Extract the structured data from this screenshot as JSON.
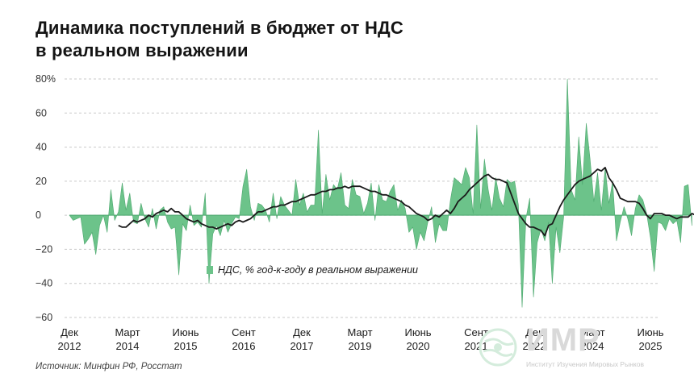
{
  "title": {
    "line1": "Динамика поступлений в бюджет от НДС",
    "line2": "в реальном выражении"
  },
  "source": "Источник: Минфин РФ, Росстат",
  "logo": {
    "name": "ИМР",
    "subtitle": "Институт Изучения Мировых Рынков"
  },
  "colors": {
    "bar_fill": "#6cc38a",
    "bar_stroke": "#4ea86f",
    "line": "#1a1a1a",
    "grid": "#c9c9c9",
    "axis_text": "#333333"
  },
  "chart_data": {
    "type": "area",
    "grid": true,
    "legend_position": "middle",
    "ylim": [
      -60,
      80
    ],
    "yticks": [
      -60,
      -40,
      -20,
      0,
      20,
      40,
      60,
      80
    ],
    "ytick_labels": [
      "−60",
      "−40",
      "−20",
      "0",
      "20",
      "40",
      "60",
      "80%"
    ],
    "xtick_labels": [
      [
        "Дек",
        "2012"
      ],
      [
        "Март",
        "2014"
      ],
      [
        "Июнь",
        "2015"
      ],
      [
        "Сент",
        "2016"
      ],
      [
        "Дек",
        "2017"
      ],
      [
        "Март",
        "2019"
      ],
      [
        "Июнь",
        "2020"
      ],
      [
        "Сент",
        "2021"
      ],
      [
        "Дек",
        "2022"
      ],
      [
        "Март",
        "2024"
      ],
      [
        "Июнь",
        "2025"
      ]
    ],
    "x_start": "2012-12",
    "x_end": "2025-10",
    "series": [
      {
        "name": "НДС, % год-к-году в реальном выражении",
        "type": "area",
        "values": [
          0,
          -3,
          -2,
          -1,
          -17,
          -14,
          -10,
          -23,
          -6,
          0,
          -10,
          15,
          -3,
          2,
          19,
          3,
          13,
          -4,
          -5,
          7,
          -2,
          -7,
          4,
          -8,
          3,
          5,
          -4,
          -8,
          -7,
          -35,
          -5,
          -9,
          6,
          -6,
          -4,
          -7,
          13,
          -40,
          -11,
          -6,
          -12,
          -3,
          -10,
          -5,
          -1,
          -2,
          17,
          27,
          5,
          -3,
          7,
          6,
          3,
          -4,
          13,
          -2,
          11,
          6,
          3,
          0,
          21,
          6,
          13,
          2,
          6,
          6,
          50,
          1,
          24,
          9,
          18,
          15,
          25,
          6,
          4,
          21,
          12,
          11,
          1,
          7,
          19,
          -3,
          18,
          9,
          8,
          14,
          18,
          3,
          9,
          4,
          -10,
          -7,
          -20,
          -10,
          -15,
          -4,
          5,
          -16,
          -5,
          -9,
          -9,
          9,
          22,
          20,
          18,
          28,
          22,
          1,
          53,
          4,
          33,
          15,
          3,
          22,
          10,
          5,
          21,
          19,
          20,
          6,
          -54,
          -2,
          10,
          -48,
          -16,
          -8,
          -15,
          -4,
          -40,
          -7,
          -22,
          -1,
          80,
          15,
          9,
          46,
          18,
          54,
          33,
          8,
          25,
          3,
          28,
          7,
          20,
          -15,
          -4,
          5,
          -2,
          -12,
          4,
          12,
          9,
          1,
          -13,
          -33,
          -4,
          -5,
          -9,
          -2,
          -5,
          -3,
          -16,
          17,
          18,
          -6
        ],
        "x_start_month": "2012-12"
      },
      {
        "name": "",
        "type": "line",
        "values": [
          -6,
          -7,
          -7,
          -5,
          -3,
          -4,
          -3,
          -2,
          0,
          -1,
          1,
          2,
          3,
          2,
          4,
          2,
          2,
          0,
          -2,
          -3,
          -4,
          -3,
          -5,
          -6,
          -7,
          -7,
          -8,
          -7,
          -6,
          -5,
          -6,
          -4,
          -3,
          -4,
          -3,
          -2,
          0,
          2,
          2,
          3,
          4,
          5,
          5,
          6,
          6,
          7,
          8,
          8,
          9,
          10,
          11,
          12,
          12,
          13,
          14,
          14,
          15,
          15,
          16,
          16,
          17,
          16,
          17,
          17,
          17,
          16,
          15,
          14,
          14,
          13,
          12,
          12,
          11,
          10,
          9,
          8,
          6,
          5,
          3,
          1,
          0,
          -1,
          -3,
          -2,
          0,
          -1,
          1,
          3,
          1,
          4,
          8,
          10,
          12,
          15,
          17,
          19,
          21,
          23,
          24,
          22,
          21,
          21,
          20,
          19,
          13,
          7,
          1,
          -2,
          -5,
          -7,
          -7,
          -8,
          -9,
          -12,
          -6,
          -5,
          0,
          5,
          9,
          12,
          15,
          18,
          20,
          21,
          22,
          23,
          25,
          27,
          26,
          28,
          22,
          19,
          15,
          10,
          9,
          8,
          8,
          8,
          7,
          4,
          0,
          -2,
          1,
          1,
          1,
          0,
          0,
          -1,
          -2,
          -1,
          -1,
          -1,
          1,
          0
        ],
        "x_start_month": "2014-01"
      }
    ]
  }
}
